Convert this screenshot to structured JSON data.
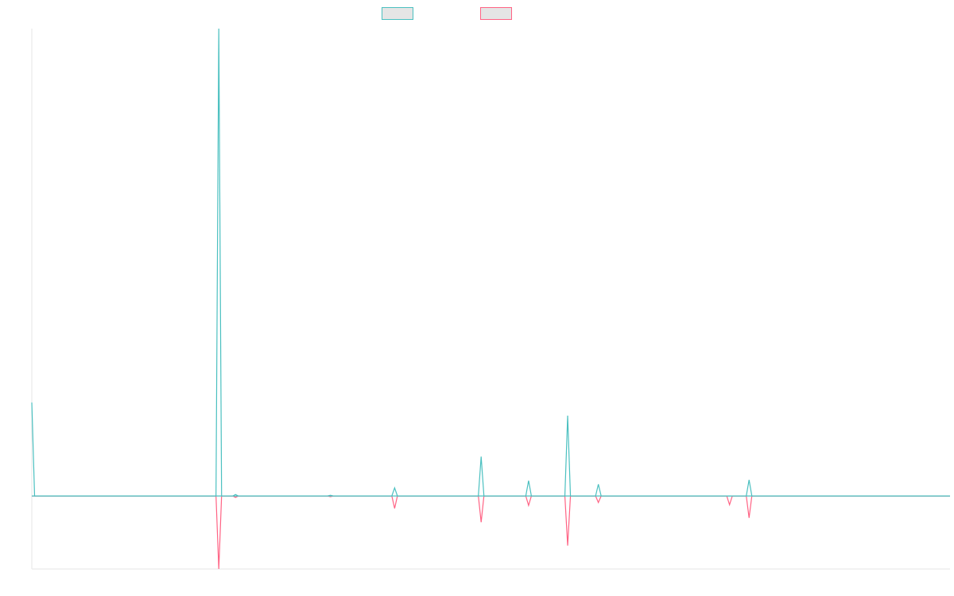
{
  "legend": {
    "items": [
      {
        "series_index": 0,
        "color": "#4bc0c0",
        "label": ""
      },
      {
        "series_index": 1,
        "color": "#ff6384",
        "label": ""
      }
    ]
  },
  "chart_data": {
    "type": "line",
    "title": "",
    "xlabel": "",
    "ylabel": "",
    "grid": false,
    "legend_position": "top-center",
    "ylim": [
      -100,
      640
    ],
    "x": [
      0,
      1,
      2,
      3,
      4,
      5,
      6,
      7,
      8,
      9,
      10,
      11,
      12,
      13,
      14,
      15,
      16,
      17,
      18,
      19,
      20,
      21,
      22,
      23,
      24,
      25,
      26,
      27,
      28,
      29,
      30,
      31,
      32,
      33,
      34,
      35,
      36,
      37,
      38,
      39,
      40,
      41,
      42,
      43,
      44,
      45,
      46,
      47,
      48,
      49,
      50,
      51,
      52,
      53,
      54,
      55,
      56,
      57,
      58,
      59,
      60,
      61,
      62,
      63,
      64,
      65,
      66,
      67,
      68,
      69,
      70,
      71,
      72,
      73,
      74,
      75,
      76,
      77,
      78,
      79,
      80,
      81,
      82,
      83,
      84,
      85,
      86,
      87,
      88,
      89,
      90,
      91,
      92,
      93,
      94,
      95,
      96,
      97,
      98,
      99,
      100,
      101,
      102,
      103,
      104,
      105,
      106,
      107,
      108,
      109,
      110,
      111,
      112,
      113,
      114,
      115,
      116,
      117,
      118,
      119,
      120,
      121,
      122,
      123,
      124,
      125,
      126,
      127,
      128,
      129,
      130,
      131,
      132,
      133,
      134,
      135,
      136,
      137,
      138,
      139,
      140,
      141,
      142,
      143,
      144,
      145,
      146,
      147,
      148,
      149,
      150,
      151,
      152,
      153,
      154,
      155,
      156,
      157,
      158,
      159,
      160,
      161,
      162,
      163,
      164,
      165,
      166,
      167,
      168,
      169,
      170,
      171,
      172,
      173,
      174,
      175,
      176,
      177,
      178,
      179,
      180,
      181,
      182,
      183,
      184,
      185,
      186,
      187,
      188,
      189,
      190,
      191,
      192,
      193,
      194,
      195,
      196,
      197,
      198,
      199,
      200,
      201,
      202,
      203,
      204,
      205,
      206,
      207,
      208,
      209,
      210,
      211,
      212,
      213,
      214,
      215,
      216,
      217,
      218,
      219,
      220,
      221,
      222,
      223,
      224,
      225,
      226,
      227,
      228,
      229,
      230,
      231,
      232,
      233,
      234,
      235,
      236,
      237,
      238,
      239,
      240,
      241,
      242,
      243,
      244,
      245,
      246,
      247,
      248,
      249,
      250,
      251,
      252,
      253,
      254,
      255,
      256,
      257,
      258,
      259,
      260,
      261,
      262,
      263,
      264,
      265,
      266,
      267,
      268,
      269,
      270,
      271,
      272,
      273,
      274,
      275,
      276,
      277,
      278,
      279,
      280,
      281,
      282,
      283,
      284,
      285,
      286,
      287,
      288,
      289,
      290,
      291,
      292,
      293,
      294,
      295,
      296,
      297,
      298,
      299,
      300,
      301,
      302,
      303,
      304,
      305,
      306,
      307,
      308,
      309,
      310,
      311,
      312,
      313,
      314,
      315,
      316,
      317,
      318,
      319,
      320,
      321,
      322,
      323,
      324,
      325,
      326,
      327,
      328,
      329
    ],
    "series": [
      {
        "color": "#4bc0c0",
        "points": [
          [
            0,
            128
          ],
          [
            1,
            0
          ],
          [
            66,
            0
          ],
          [
            67,
            640
          ],
          [
            68,
            0
          ],
          [
            72,
            0
          ],
          [
            73,
            2
          ],
          [
            74,
            0
          ],
          [
            106,
            0
          ],
          [
            107,
            1
          ],
          [
            108,
            0
          ],
          [
            129,
            0
          ],
          [
            130,
            11
          ],
          [
            131,
            0
          ],
          [
            160,
            0
          ],
          [
            161,
            54
          ],
          [
            162,
            0
          ],
          [
            177,
            0
          ],
          [
            178,
            21
          ],
          [
            179,
            0
          ],
          [
            191,
            0
          ],
          [
            192,
            110
          ],
          [
            193,
            0
          ],
          [
            202,
            0
          ],
          [
            203,
            16
          ],
          [
            204,
            0
          ],
          [
            249,
            0
          ],
          [
            250,
            0
          ],
          [
            251,
            0
          ],
          [
            256,
            0
          ],
          [
            257,
            22
          ],
          [
            258,
            0
          ],
          [
            329,
            0
          ]
        ]
      },
      {
        "color": "#ff6384",
        "points": [
          [
            0,
            0
          ],
          [
            66,
            0
          ],
          [
            67,
            -100
          ],
          [
            68,
            0
          ],
          [
            72,
            0
          ],
          [
            73,
            -2
          ],
          [
            74,
            0
          ],
          [
            106,
            0
          ],
          [
            107,
            -1
          ],
          [
            108,
            0
          ],
          [
            129,
            0
          ],
          [
            130,
            -17
          ],
          [
            131,
            0
          ],
          [
            160,
            0
          ],
          [
            161,
            -36
          ],
          [
            162,
            0
          ],
          [
            177,
            0
          ],
          [
            178,
            -13
          ],
          [
            179,
            0
          ],
          [
            191,
            0
          ],
          [
            192,
            -68
          ],
          [
            193,
            0
          ],
          [
            202,
            0
          ],
          [
            203,
            -9
          ],
          [
            204,
            0
          ],
          [
            249,
            0
          ],
          [
            250,
            -12
          ],
          [
            251,
            0
          ],
          [
            256,
            0
          ],
          [
            257,
            -30
          ],
          [
            258,
            0
          ],
          [
            329,
            0
          ]
        ]
      }
    ]
  }
}
